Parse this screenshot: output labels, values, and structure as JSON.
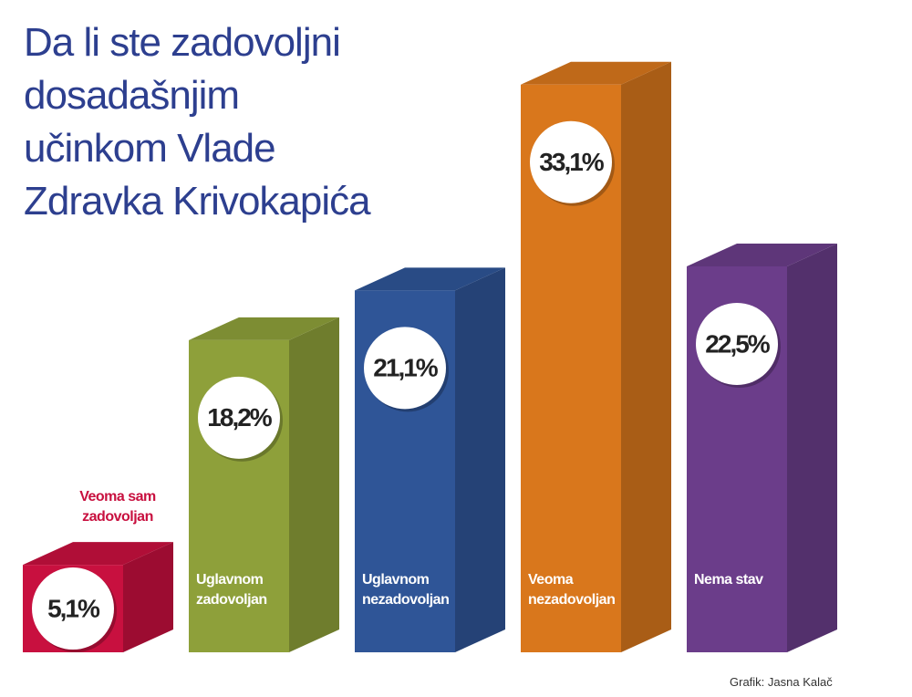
{
  "chart_data": {
    "type": "bar",
    "title": [
      "Da li ste zadovoljni",
      "dosadašnjim",
      "učinkom Vlade",
      "Zdravka Krivokapića"
    ],
    "categories": [
      "Veoma sam zadovoljan",
      "Uglavnom zadovoljan",
      "Uglavnom nezadovoljan",
      "Veoma nezadovoljan",
      "Nema stav"
    ],
    "values": [
      5.1,
      18.2,
      21.1,
      33.1,
      22.5
    ],
    "value_labels": [
      "5,1%",
      "18,2%",
      "21,1%",
      "33,1%",
      "22,5%"
    ],
    "colors": [
      "#c8103f",
      "#8ea03a",
      "#2f5597",
      "#d9771c",
      "#6b3d8a"
    ],
    "credit": "Grafik: Jasna Kalač"
  }
}
